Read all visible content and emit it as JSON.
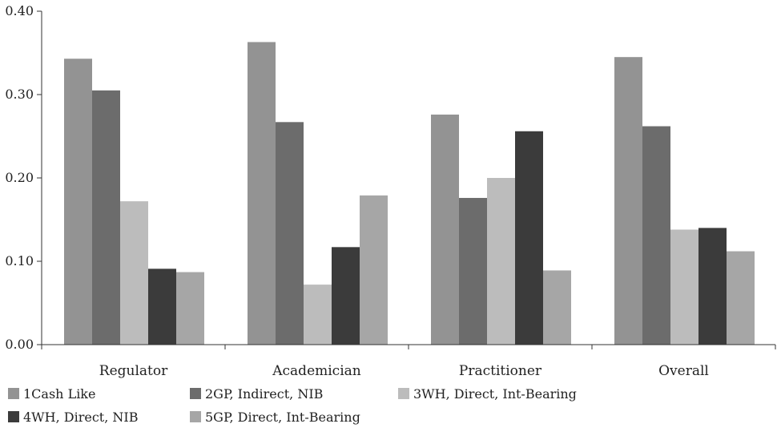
{
  "chart_data": {
    "type": "bar",
    "title": "",
    "xlabel": "",
    "ylabel": "",
    "ylim": [
      0,
      0.4
    ],
    "yticks": [
      "0.00",
      "0.10",
      "0.20",
      "0.30",
      "0.40"
    ],
    "ytick_values": [
      0,
      0.1,
      0.2,
      0.3,
      0.4
    ],
    "grid": false,
    "legend_position": "bottom",
    "categories": [
      "Regulator",
      "Academician",
      "Practitioner",
      "Overall"
    ],
    "series": [
      {
        "name": "1Cash Like",
        "color": "#939393",
        "values": [
          0.343,
          0.363,
          0.276,
          0.345
        ]
      },
      {
        "name": "2GP, Indirect, NIB",
        "color": "#6c6c6c",
        "values": [
          0.305,
          0.267,
          0.176,
          0.262
        ]
      },
      {
        "name": "3WH, Direct, Int-Bearing",
        "color": "#bcbcbc",
        "values": [
          0.172,
          0.072,
          0.2,
          0.138
        ]
      },
      {
        "name": "4WH, Direct, NIB",
        "color": "#3b3b3b",
        "values": [
          0.091,
          0.117,
          0.256,
          0.14
        ]
      },
      {
        "name": "5GP, Direct, Int-Bearing",
        "color": "#a6a6a6",
        "values": [
          0.087,
          0.179,
          0.089,
          0.112
        ]
      }
    ]
  }
}
